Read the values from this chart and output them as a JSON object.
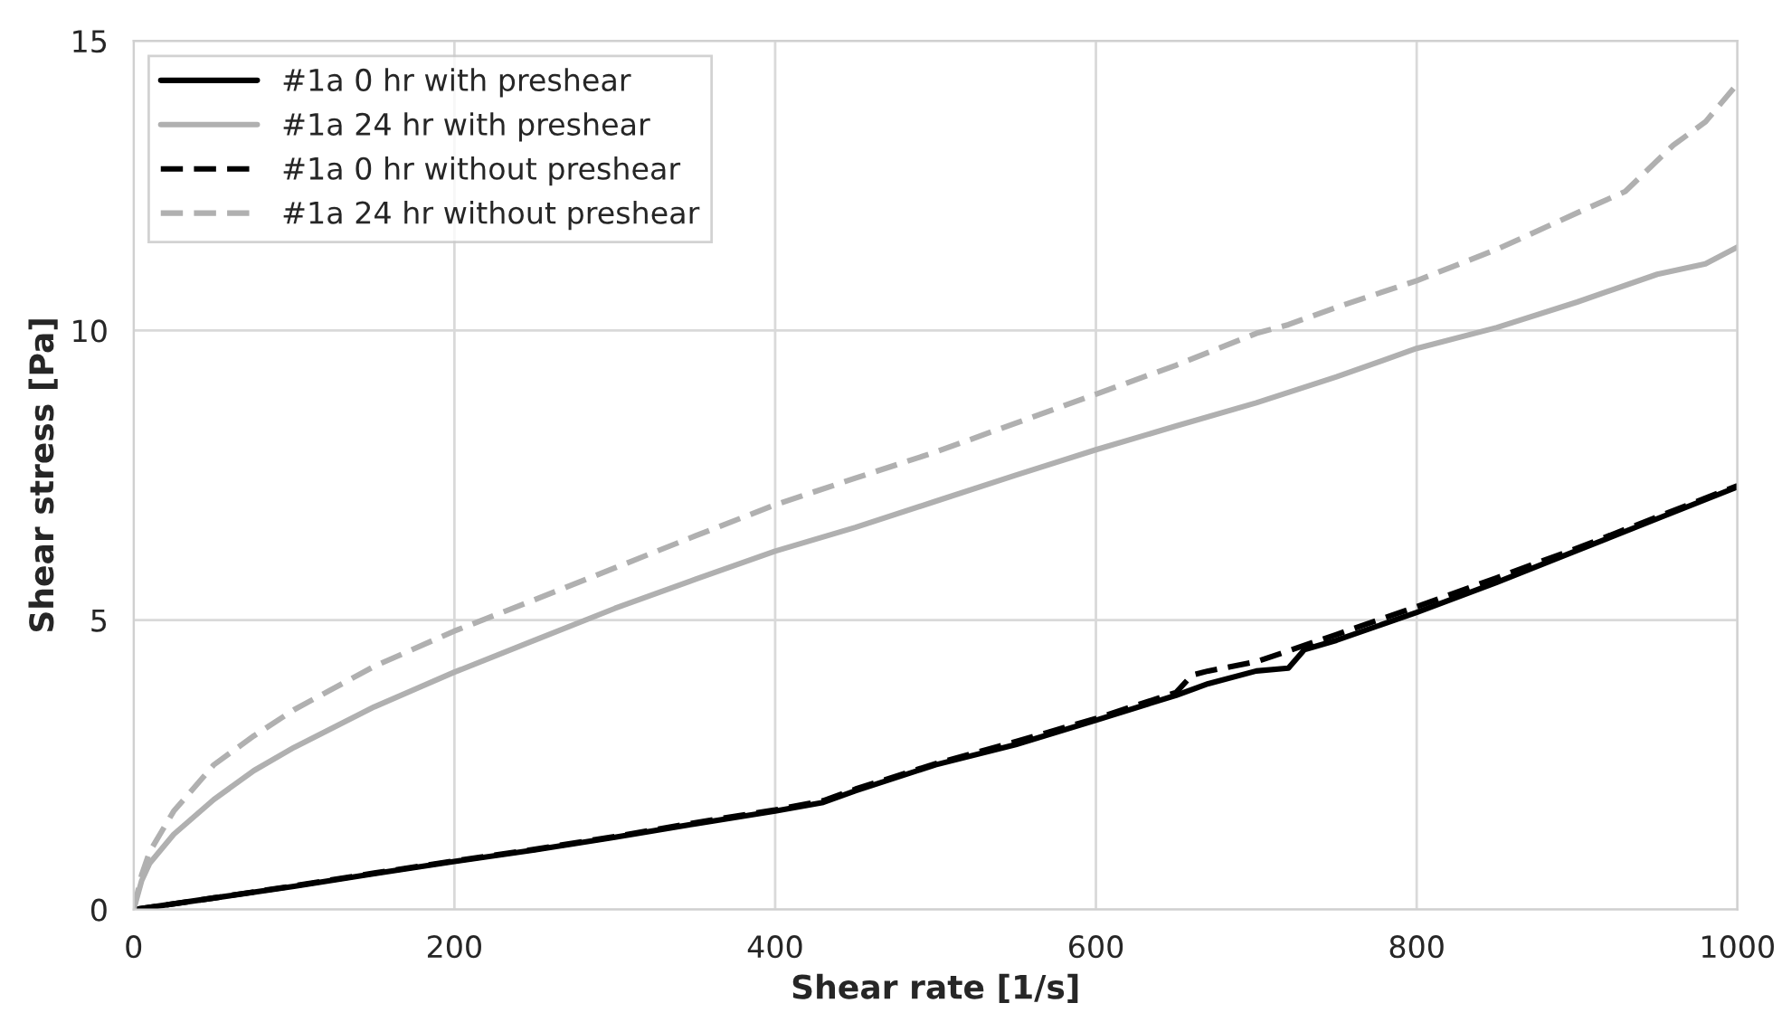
{
  "chart_data": {
    "type": "line",
    "xlabel": "Shear rate [1/s]",
    "ylabel": "Shear stress [Pa]",
    "xlim": [
      0,
      1000
    ],
    "ylim": [
      0,
      15
    ],
    "xticks": [
      0,
      200,
      400,
      600,
      800,
      1000
    ],
    "yticks": [
      0,
      5,
      10,
      15
    ],
    "grid": true,
    "legend": "top left",
    "marker": "none",
    "series": [
      {
        "name": "#1a 0 hr with preshear",
        "color": "#000000",
        "line_style": "solid",
        "x": [
          0,
          50,
          100,
          150,
          200,
          250,
          300,
          350,
          400,
          430,
          450,
          500,
          550,
          600,
          650,
          670,
          700,
          720,
          730,
          750,
          800,
          850,
          900,
          950,
          1000
        ],
        "values": [
          0,
          0.2,
          0.4,
          0.62,
          0.83,
          1.03,
          1.25,
          1.48,
          1.7,
          1.85,
          2.05,
          2.5,
          2.85,
          3.27,
          3.7,
          3.9,
          4.12,
          4.17,
          4.49,
          4.65,
          5.13,
          5.65,
          6.2,
          6.75,
          7.3
        ]
      },
      {
        "name": "#1a 24 hr with preshear",
        "color": "#b0b0b0",
        "line_style": "solid",
        "x": [
          0,
          5,
          10,
          25,
          50,
          75,
          100,
          150,
          200,
          250,
          300,
          350,
          400,
          450,
          500,
          550,
          600,
          650,
          700,
          750,
          800,
          850,
          900,
          950,
          980,
          1000
        ],
        "values": [
          0,
          0.5,
          0.8,
          1.3,
          1.9,
          2.4,
          2.8,
          3.5,
          4.1,
          4.65,
          5.2,
          5.7,
          6.19,
          6.6,
          7.05,
          7.5,
          7.94,
          8.35,
          8.75,
          9.2,
          9.69,
          10.05,
          10.49,
          10.97,
          11.15,
          11.44
        ]
      },
      {
        "name": "#1a 0 hr without preshear",
        "color": "#000000",
        "line_style": "dashed",
        "x": [
          0,
          50,
          100,
          150,
          200,
          250,
          300,
          350,
          400,
          430,
          450,
          500,
          550,
          600,
          650,
          660,
          670,
          700,
          750,
          800,
          850,
          900,
          950,
          1000
        ],
        "values": [
          0,
          0.2,
          0.41,
          0.63,
          0.84,
          1.04,
          1.26,
          1.5,
          1.72,
          1.88,
          2.08,
          2.52,
          2.9,
          3.3,
          3.75,
          4.05,
          4.12,
          4.28,
          4.75,
          5.23,
          5.73,
          6.24,
          6.78,
          7.32
        ]
      },
      {
        "name": "#1a 24 hr without preshear",
        "color": "#b0b0b0",
        "line_style": "dashed",
        "x": [
          0,
          5,
          10,
          25,
          50,
          75,
          100,
          150,
          200,
          250,
          300,
          350,
          400,
          450,
          500,
          550,
          600,
          650,
          700,
          720,
          750,
          800,
          850,
          900,
          930,
          960,
          980,
          1000
        ],
        "values": [
          0,
          0.6,
          1.0,
          1.7,
          2.5,
          3.0,
          3.45,
          4.2,
          4.81,
          5.35,
          5.9,
          6.45,
          6.99,
          7.45,
          7.9,
          8.4,
          8.9,
          9.4,
          9.95,
          10.1,
          10.4,
          10.86,
          11.4,
          12.03,
          12.4,
          13.2,
          13.6,
          14.26
        ]
      }
    ]
  }
}
